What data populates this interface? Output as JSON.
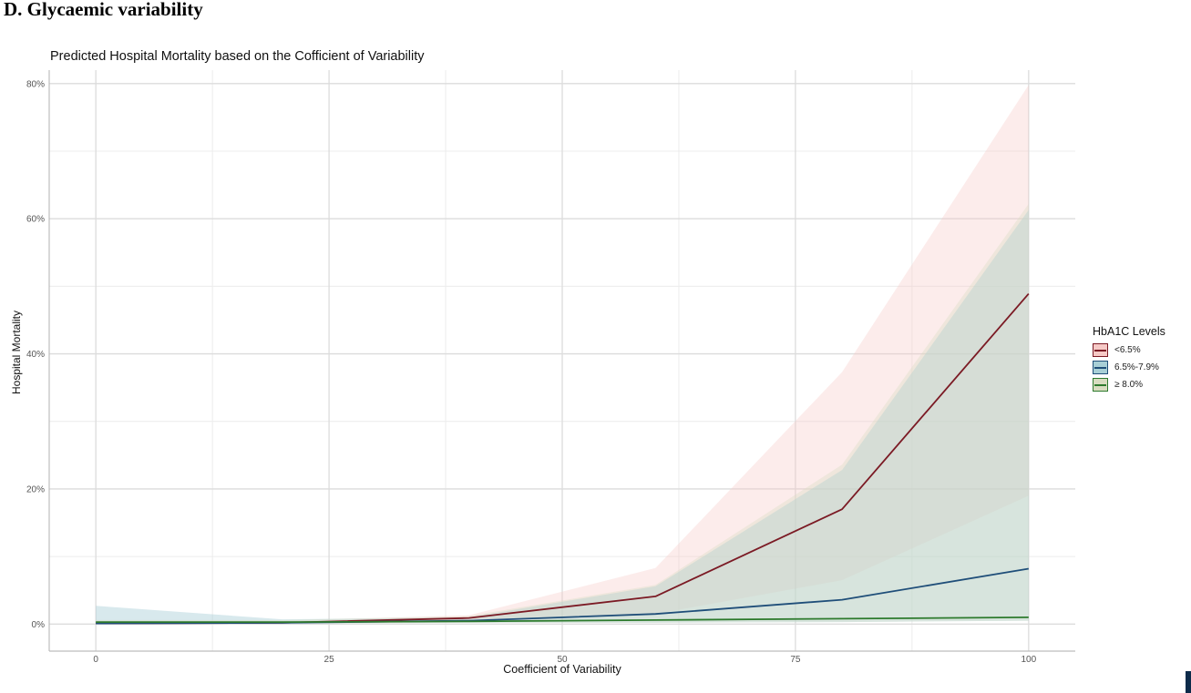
{
  "panel_label": "D. Glycaemic variability",
  "chart_data": {
    "type": "line",
    "title": "Predicted Hospital Mortality based on the Cofficient of Variability",
    "xlabel": "Coefficient of Variability",
    "ylabel": "Hospital Mortality",
    "xlim": [
      -5,
      105
    ],
    "ylim": [
      -4,
      82
    ],
    "x_ticks": [
      0,
      25,
      50,
      75,
      100
    ],
    "y_ticks": [
      0,
      20,
      40,
      60,
      80
    ],
    "y_tick_labels": [
      "0%",
      "20%",
      "40%",
      "60%",
      "80%"
    ],
    "grid": true,
    "legend": {
      "title": "HbA1C Levels",
      "position": "right"
    },
    "x": [
      0,
      20,
      40,
      60,
      80,
      100
    ],
    "series": [
      {
        "name": "<6.5%",
        "color": "#7b1a24",
        "band_color": "#f6c9c6",
        "values": [
          0.1,
          0.2,
          0.9,
          4.1,
          17.0,
          48.9
        ],
        "lower": [
          0.0,
          0.1,
          0.3,
          1.5,
          6.5,
          19.0
        ],
        "upper": [
          0.5,
          0.5,
          1.3,
          8.3,
          37.3,
          79.8
        ]
      },
      {
        "name": "6.5%-7.9%",
        "color": "#1f4e79",
        "band_color": "#a8cfd6",
        "values": [
          0.1,
          0.2,
          0.5,
          1.5,
          3.6,
          8.2
        ],
        "lower": [
          0.0,
          0.1,
          0.2,
          0.2,
          0.3,
          0.5
        ],
        "upper": [
          2.7,
          0.7,
          1.0,
          5.6,
          22.8,
          61.3
        ]
      },
      {
        "name": "≥ 8.0%",
        "color": "#2d7a2d",
        "band_color": "#d8dcc0",
        "values": [
          0.3,
          0.3,
          0.4,
          0.6,
          0.8,
          1.0
        ],
        "lower": [
          0.0,
          0.1,
          0.2,
          0.2,
          0.3,
          0.5
        ],
        "upper": [
          0.6,
          0.6,
          1.2,
          5.8,
          23.6,
          62.2
        ]
      }
    ]
  }
}
